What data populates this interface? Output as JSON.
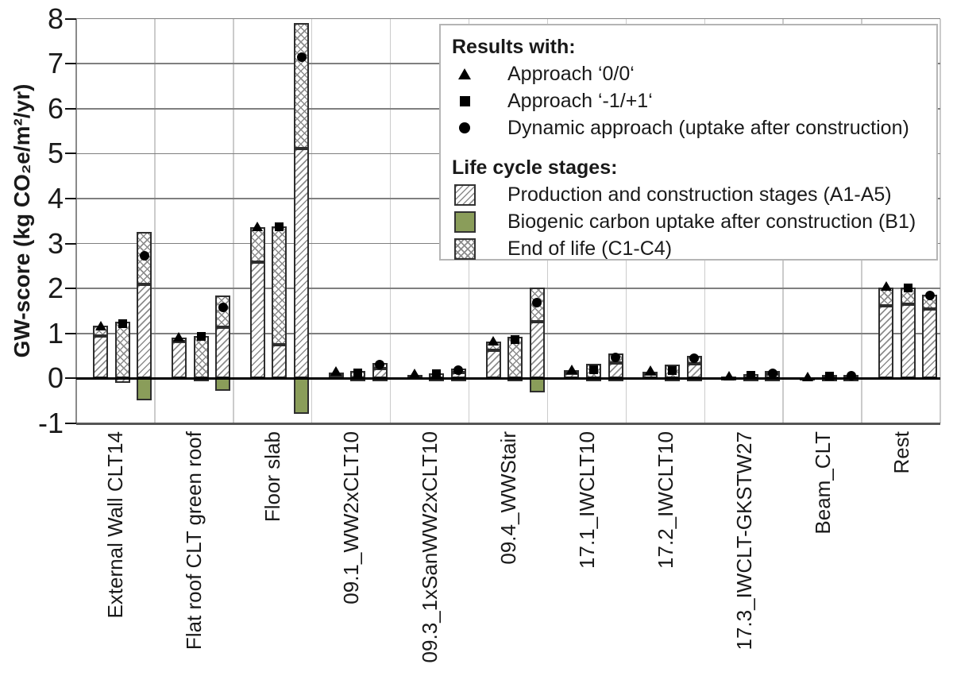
{
  "chart_data": {
    "type": "bar",
    "title": "",
    "ylabel": "GW-score (kg CO₂e/m²/yr)",
    "ylim": [
      -1,
      8
    ],
    "yticks": [
      8,
      7,
      6,
      5,
      4,
      3,
      2,
      1,
      0,
      -1
    ],
    "grid": true,
    "legend_position": "top-right",
    "categories": [
      "External Wall CLT14",
      "Flat roof CLT green roof",
      "Floor slab",
      "09.1_WW2xCLT10",
      "09.3_1xSanWW2xCLT10",
      "09.4_WWStair",
      "17.1_IWCLT10",
      "17.2_IWCLT10",
      "17.3_IWCLT-GKSTW27",
      "Beam_CLT",
      "Rest"
    ],
    "approaches": [
      "Approach ‘0/0‘",
      "Approach ‘-1/+1‘",
      "Dynamic approach (uptake after construction)"
    ],
    "approach_markers": [
      "triangle",
      "square",
      "circle"
    ],
    "stages": [
      "Production and construction stages (A1-A5)",
      "Biogenic carbon uptake after construction (B1)",
      "End of life (C1-C4)"
    ],
    "bars_note": "a = A1-A5 diagonal-hatch segment, c = C1-C4 crosshatch segment, b = B1 green negative segment, m = total GW-score marker",
    "bars": [
      [
        {
          "a": 0.95,
          "c": 0.22,
          "b": 0,
          "m": 1.15
        },
        {
          "a": -0.1,
          "c": 1.27,
          "b": 0,
          "m": 1.21
        },
        {
          "a": 2.1,
          "c": 1.15,
          "b": -0.48,
          "m": 2.72
        }
      ],
      [
        {
          "a": 0.82,
          "c": 0.08,
          "b": 0,
          "m": 0.9
        },
        {
          "a": -0.06,
          "c": 0.95,
          "b": 0,
          "m": 0.93
        },
        {
          "a": 1.13,
          "c": 0.72,
          "b": -0.27,
          "m": 1.58
        }
      ],
      [
        {
          "a": 2.59,
          "c": 0.77,
          "b": 0,
          "m": 3.36
        },
        {
          "a": 0.75,
          "c": 2.63,
          "b": 0,
          "m": 3.38
        },
        {
          "a": 5.12,
          "c": 2.78,
          "b": -0.78,
          "m": 7.15
        }
      ],
      [
        {
          "a": 0.08,
          "c": 0.05,
          "b": 0,
          "m": 0.14
        },
        {
          "a": -0.02,
          "c": 0.16,
          "b": 0,
          "m": 0.12
        },
        {
          "a": 0.22,
          "c": 0.12,
          "b": -0.03,
          "m": 0.3
        }
      ],
      [
        {
          "a": 0.05,
          "c": 0.03,
          "b": 0,
          "m": 0.09
        },
        {
          "a": -0.02,
          "c": 0.12,
          "b": 0,
          "m": 0.1
        },
        {
          "a": 0.13,
          "c": 0.09,
          "b": -0.02,
          "m": 0.19
        }
      ],
      [
        {
          "a": 0.63,
          "c": 0.19,
          "b": 0,
          "m": 0.82
        },
        {
          "a": -0.05,
          "c": 0.92,
          "b": 0,
          "m": 0.86
        },
        {
          "a": 1.26,
          "c": 0.76,
          "b": -0.31,
          "m": 1.68
        }
      ],
      [
        {
          "a": 0.11,
          "c": 0.07,
          "b": 0,
          "m": 0.19
        },
        {
          "a": -0.04,
          "c": 0.32,
          "b": 0,
          "m": 0.19
        },
        {
          "a": 0.35,
          "c": 0.21,
          "b": -0.06,
          "m": 0.47
        }
      ],
      [
        {
          "a": 0.1,
          "c": 0.05,
          "b": 0,
          "m": 0.17
        },
        {
          "a": -0.05,
          "c": 0.3,
          "b": 0,
          "m": 0.17
        },
        {
          "a": 0.32,
          "c": 0.18,
          "b": -0.07,
          "m": 0.44
        }
      ],
      [
        {
          "a": 0.03,
          "c": 0.02,
          "b": 0,
          "m": 0.05
        },
        {
          "a": -0.01,
          "c": 0.1,
          "b": 0,
          "m": 0.07
        },
        {
          "a": 0.1,
          "c": 0.06,
          "b": -0.02,
          "m": 0.12
        }
      ],
      [
        {
          "a": 0.02,
          "c": 0.01,
          "b": 0,
          "m": 0.03
        },
        {
          "a": -0.01,
          "c": 0.07,
          "b": 0,
          "m": 0.05
        },
        {
          "a": 0.05,
          "c": 0.03,
          "b": -0.01,
          "m": 0.06
        }
      ],
      [
        {
          "a": 1.62,
          "c": 0.4,
          "b": 0,
          "m": 2.04
        },
        {
          "a": 1.65,
          "c": 0.37,
          "b": 0,
          "m": 2.02
        },
        {
          "a": 1.55,
          "c": 0.32,
          "b": 0,
          "m": 1.85
        }
      ]
    ]
  },
  "legend": {
    "results_title": "Results with:",
    "result_items": [
      {
        "marker": "triangle",
        "label": "Approach ‘0/0‘"
      },
      {
        "marker": "square",
        "label": "Approach ‘-1/+1‘"
      },
      {
        "marker": "circle",
        "label": "Dynamic approach (uptake after construction)"
      }
    ],
    "stages_title": "Life cycle stages:",
    "stage_items": [
      {
        "pattern": "diagonal-hatch",
        "label": "Production and construction stages (A1-A5)"
      },
      {
        "pattern": "solid-green",
        "label": "Biogenic carbon uptake after construction (B1)"
      },
      {
        "pattern": "crosshatch",
        "label": "End of life (C1-C4)"
      }
    ]
  },
  "colors": {
    "biogenic_green": "#8a9d5a",
    "hatch_line": "#8c8c8c",
    "bar_border": "#2e2e2e",
    "zero_line": "#000000",
    "grid_horizontal": "#7f7f7f",
    "grid_vertical": "#cbcbcb",
    "marker_black": "#000000"
  }
}
